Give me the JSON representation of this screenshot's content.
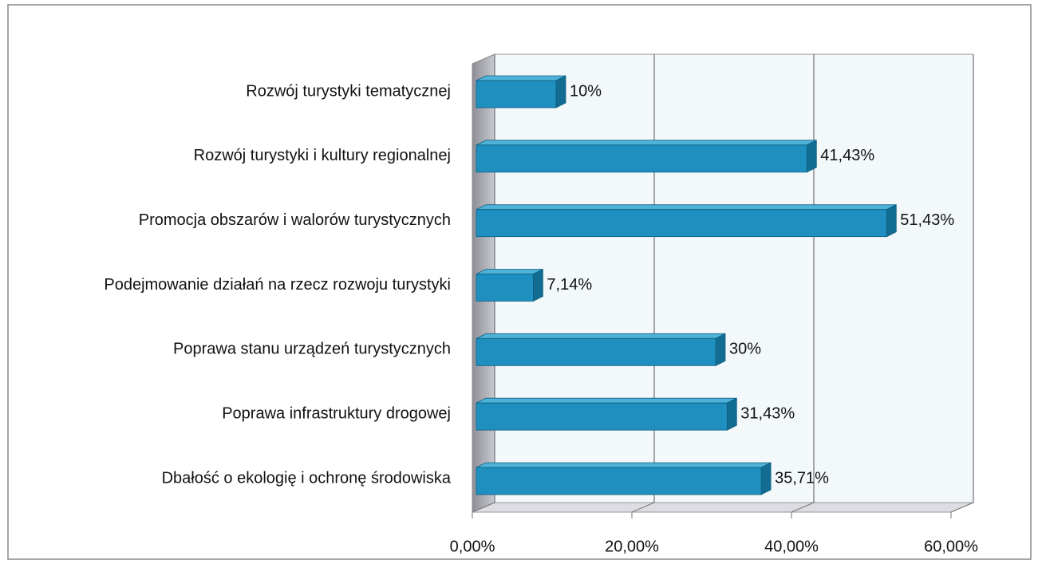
{
  "chart_data": {
    "type": "bar",
    "orientation": "horizontal",
    "categories": [
      "Rozwój turystyki tematycznej",
      "Rozwój turystyki i kultury regionalnej",
      "Promocja obszarów i walorów turystycznych",
      "Podejmowanie działań na rzecz rozwoju turystyki",
      "Poprawa stanu urządzeń turystycznych",
      "Poprawa infrastruktury drogowej",
      "Dbałość o ekologię i ochronę środowiska"
    ],
    "values": [
      10,
      41.43,
      51.43,
      7.14,
      30,
      31.43,
      35.71
    ],
    "value_labels": [
      "10%",
      "41,43%",
      "51,43%",
      "7,14%",
      "30%",
      "31,43%",
      "35,71%"
    ],
    "color": "#1f8fbf",
    "xlim": [
      0,
      60
    ],
    "xticks": [
      {
        "value": 0,
        "label": "0,00%"
      },
      {
        "value": 20,
        "label": "20,00%"
      },
      {
        "value": 40,
        "label": "40,00%"
      },
      {
        "value": 60,
        "label": "60,00%"
      }
    ],
    "grid": true
  }
}
